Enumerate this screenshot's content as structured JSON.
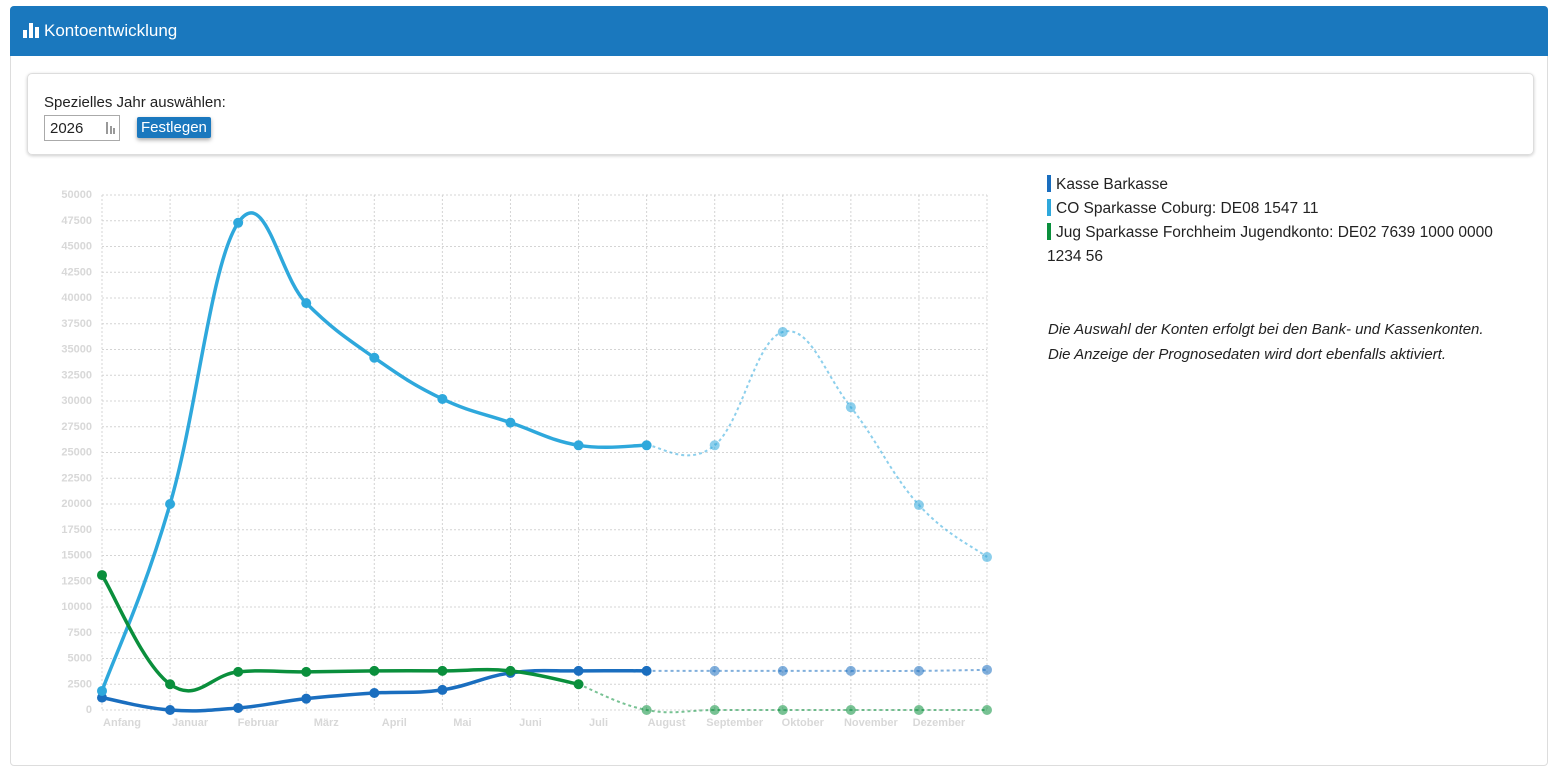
{
  "header": {
    "title": "Kontoentwicklung"
  },
  "form": {
    "label": "Spezielles Jahr auswählen:",
    "year": "2026",
    "button": "Festlegen"
  },
  "chart_data": {
    "type": "line",
    "categories": [
      "Anfang",
      "Januar",
      "Februar",
      "März",
      "April",
      "Mai",
      "Juni",
      "Juli",
      "August",
      "September",
      "Oktober",
      "November",
      "Dezember",
      null
    ],
    "series": [
      {
        "name": "Kasse Barkasse",
        "color": "#1a6ebf",
        "solid_until": 8,
        "values": [
          1200,
          0,
          200,
          1100,
          1650,
          1950,
          3600,
          3800,
          3800,
          3800,
          3800,
          3800,
          3800,
          3900
        ]
      },
      {
        "name": "CO Sparkasse Coburg: DE08 1547 11",
        "color": "#2ea8dc",
        "solid_until": 8,
        "values": [
          1850,
          20000,
          47300,
          39500,
          34200,
          30200,
          27900,
          25700,
          25700,
          25700,
          36700,
          29400,
          19900,
          14850
        ]
      },
      {
        "name": "Jug Sparkasse Forchheim Jugendkonto: DE02 7639 1000 0000 1234 56",
        "color": "#0a8f3c",
        "solid_until": 7,
        "values": [
          13100,
          2500,
          3700,
          3700,
          3800,
          3800,
          3800,
          2500,
          0,
          0,
          0,
          0,
          0,
          0
        ]
      }
    ],
    "ylim": [
      0,
      50000
    ],
    "yticks": [
      0,
      2500,
      5000,
      7500,
      10000,
      12500,
      15000,
      17500,
      20000,
      22500,
      25000,
      27500,
      30000,
      32500,
      35000,
      37500,
      40000,
      42500,
      45000,
      47500,
      50000
    ],
    "grid": true
  },
  "note": [
    "Die Auswahl der Konten erfolgt bei den Bank- und Kassenkonten.",
    "Die Anzeige der Prognosedaten wird dort ebenfalls aktiviert."
  ]
}
